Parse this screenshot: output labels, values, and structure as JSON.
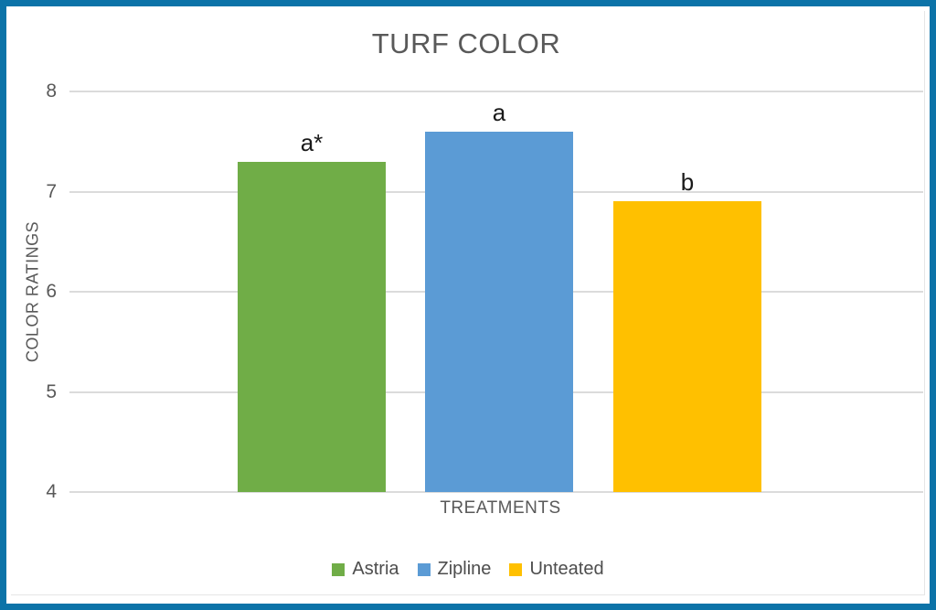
{
  "frame": {
    "border_color": "#0C73A8"
  },
  "chart_data": {
    "type": "bar",
    "title": "TURF COLOR",
    "xlabel": "TREATMENTS",
    "ylabel": "COLOR RATINGS",
    "ylim": [
      4,
      8
    ],
    "yticks": [
      8,
      7,
      6,
      5,
      4
    ],
    "grid": true,
    "legend_position": "bottom",
    "categories": [
      "Astria",
      "Zipline",
      "Unteated"
    ],
    "values": [
      7.3,
      7.6,
      6.9
    ],
    "bar_labels": [
      "a*",
      "a",
      "b"
    ],
    "colors": {
      "bars": [
        "#70AD47",
        "#5B9BD5",
        "#FFC000"
      ],
      "axis_text": "#595959",
      "annotation_text": "#1A1A1A",
      "legend_text": "#4D4D4D",
      "gridline": "#DBDBDB"
    }
  }
}
